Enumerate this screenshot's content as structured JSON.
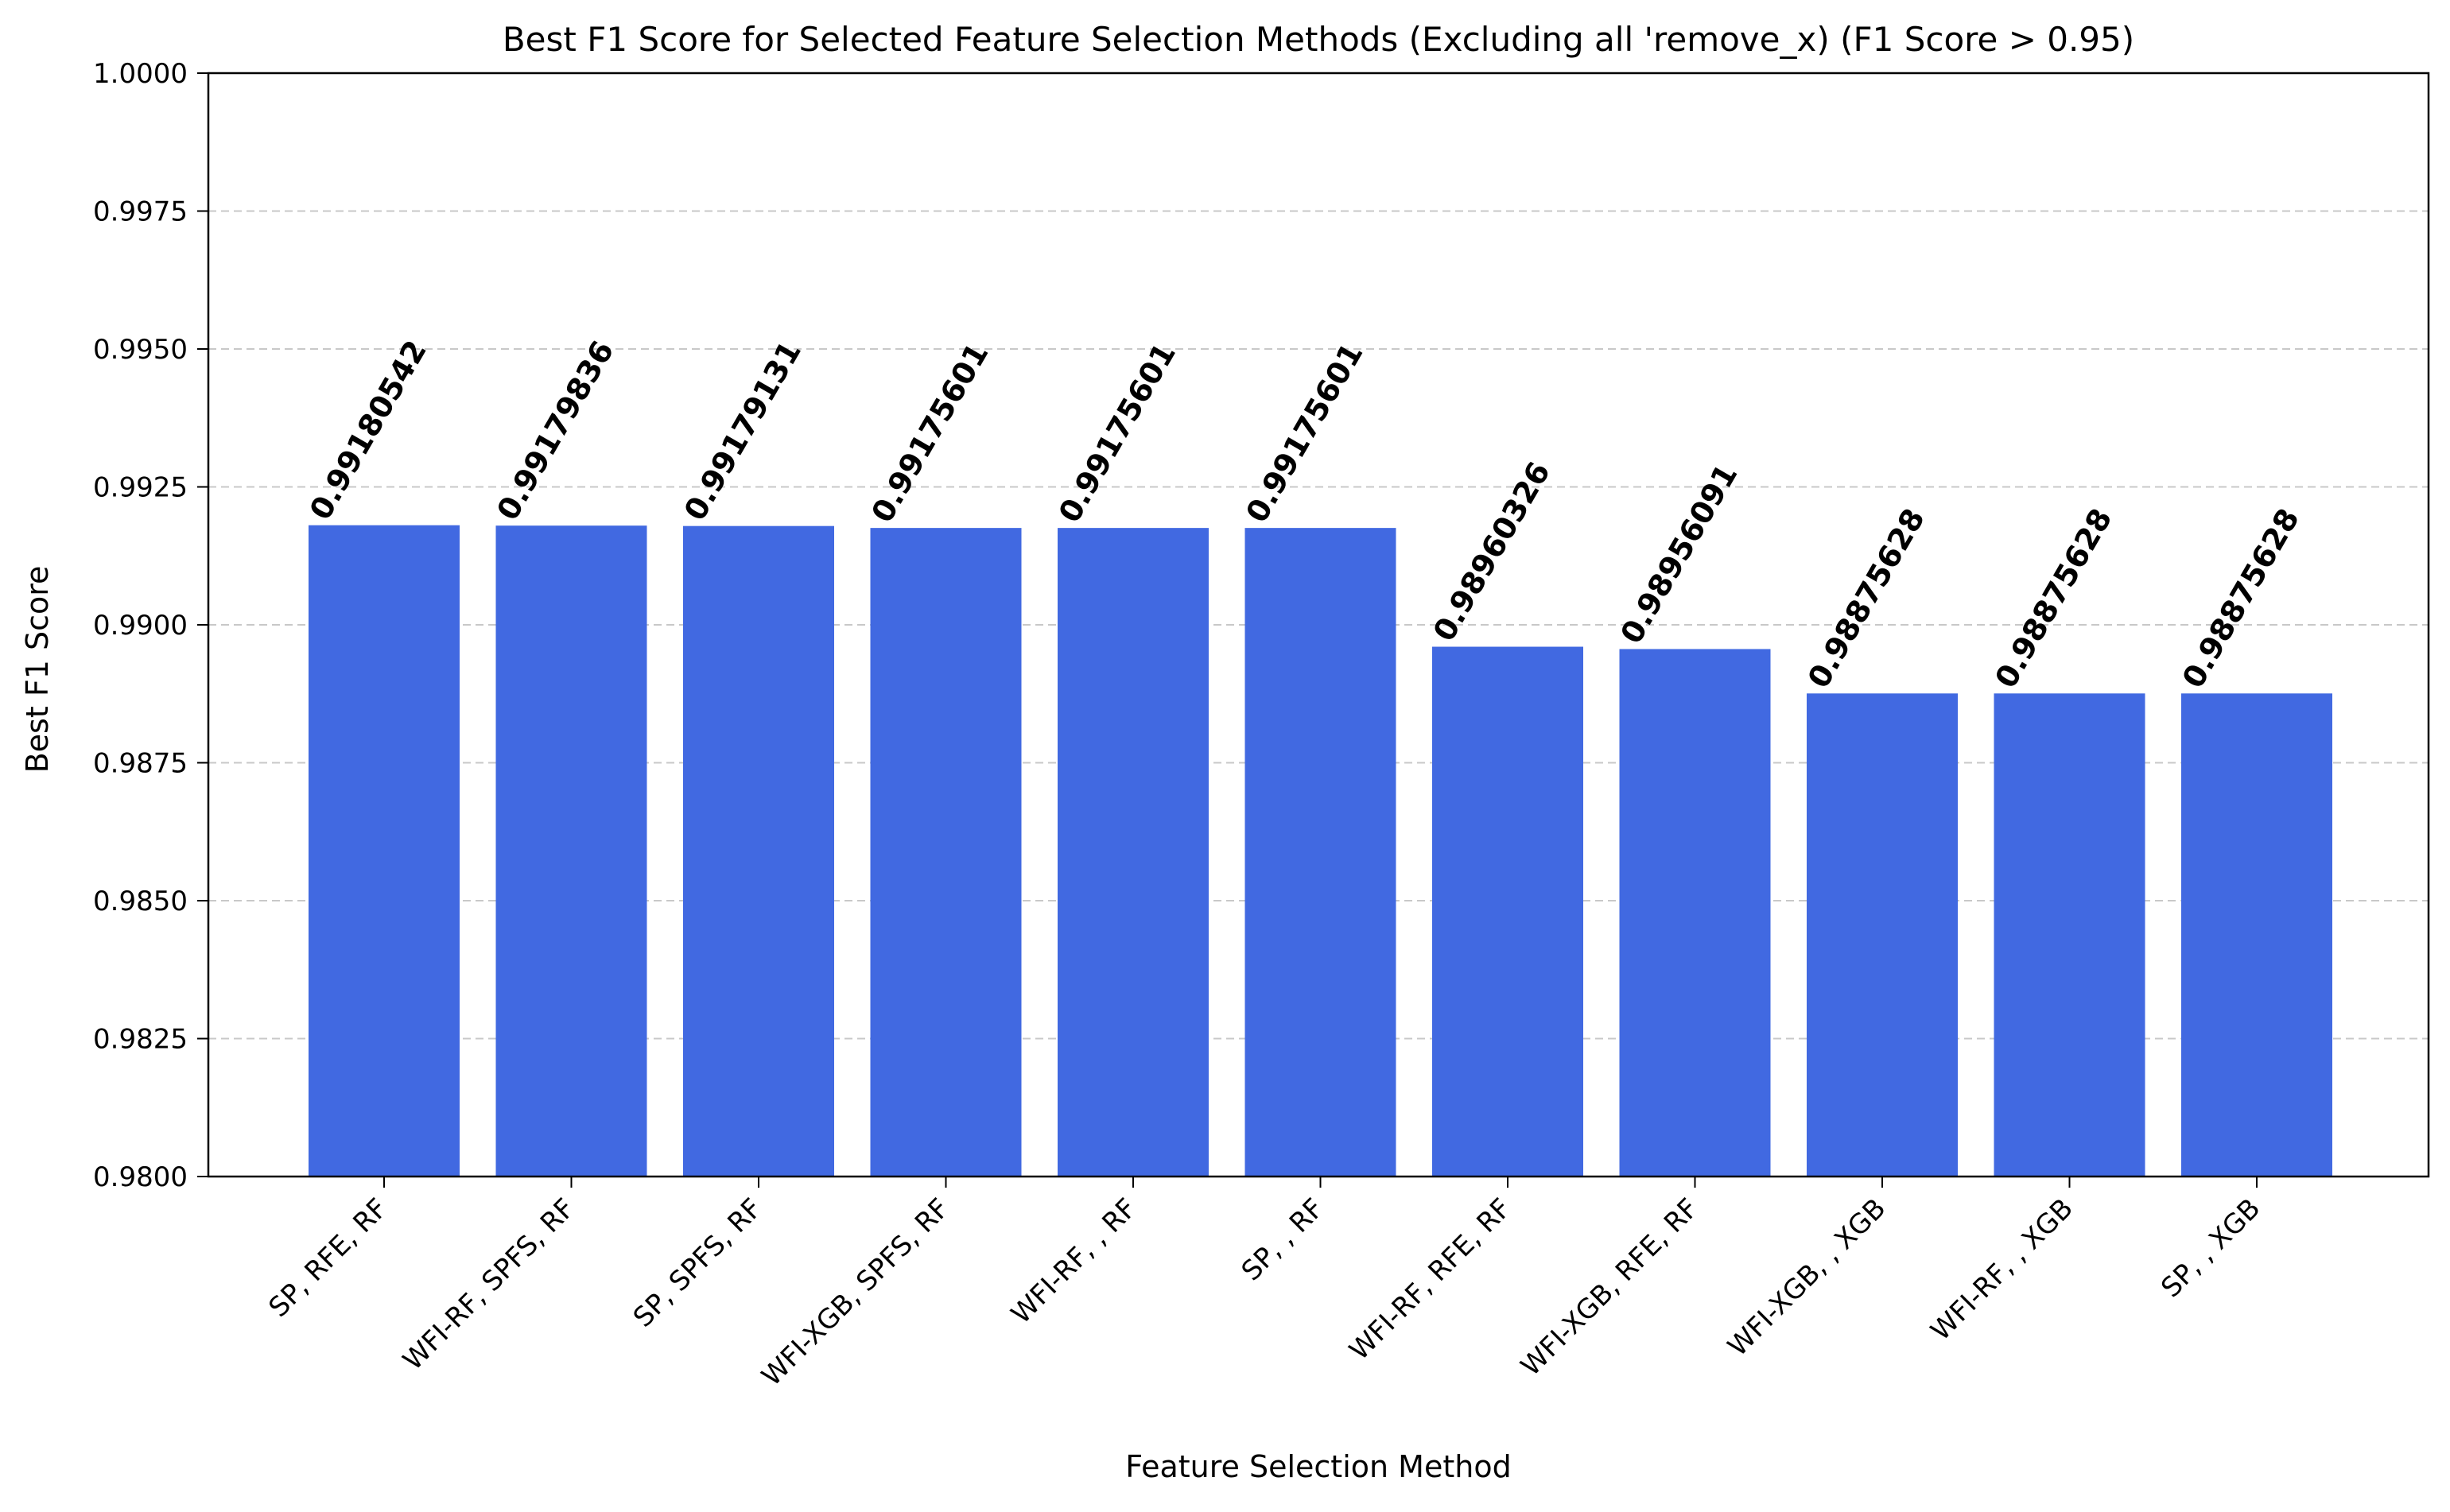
{
  "chart_data": {
    "type": "bar",
    "title": "Best F1 Score for Selected Feature Selection Methods (Excluding all 'remove_x) (F1 Score > 0.95)",
    "xlabel": "Feature Selection Method",
    "ylabel": "Best F1 Score",
    "ylim": [
      0.98,
      1.0
    ],
    "yticks": [
      "0.9800",
      "0.9825",
      "0.9850",
      "0.9875",
      "0.9900",
      "0.9925",
      "0.9950",
      "0.9975",
      "1.0000"
    ],
    "grid": "y-dashed",
    "bar_color": "#4169E1",
    "categories": [
      "SP, RFE, RF",
      "WFI-RF, SPFS, RF",
      "SP, SPFS, RF",
      "WFI-XGB, SPFS, RF",
      "WFI-RF, , RF",
      "SP, , RF",
      "WFI-RF, RFE, RF",
      "WFI-XGB, RFE, RF",
      "WFI-XGB, , XGB",
      "WFI-RF, , XGB",
      "SP, , XGB"
    ],
    "values": [
      0.99180542,
      0.99179836,
      0.99179131,
      0.99175601,
      0.99175601,
      0.99175601,
      0.98960326,
      0.98956091,
      0.98875628,
      0.98875628,
      0.98875628
    ],
    "data_labels": [
      "0.99180542",
      "0.99179836",
      "0.99179131",
      "0.99175601",
      "0.99175601",
      "0.99175601",
      "0.98960326",
      "0.98956091",
      "0.98875628",
      "0.98875628",
      "0.98875628"
    ]
  }
}
